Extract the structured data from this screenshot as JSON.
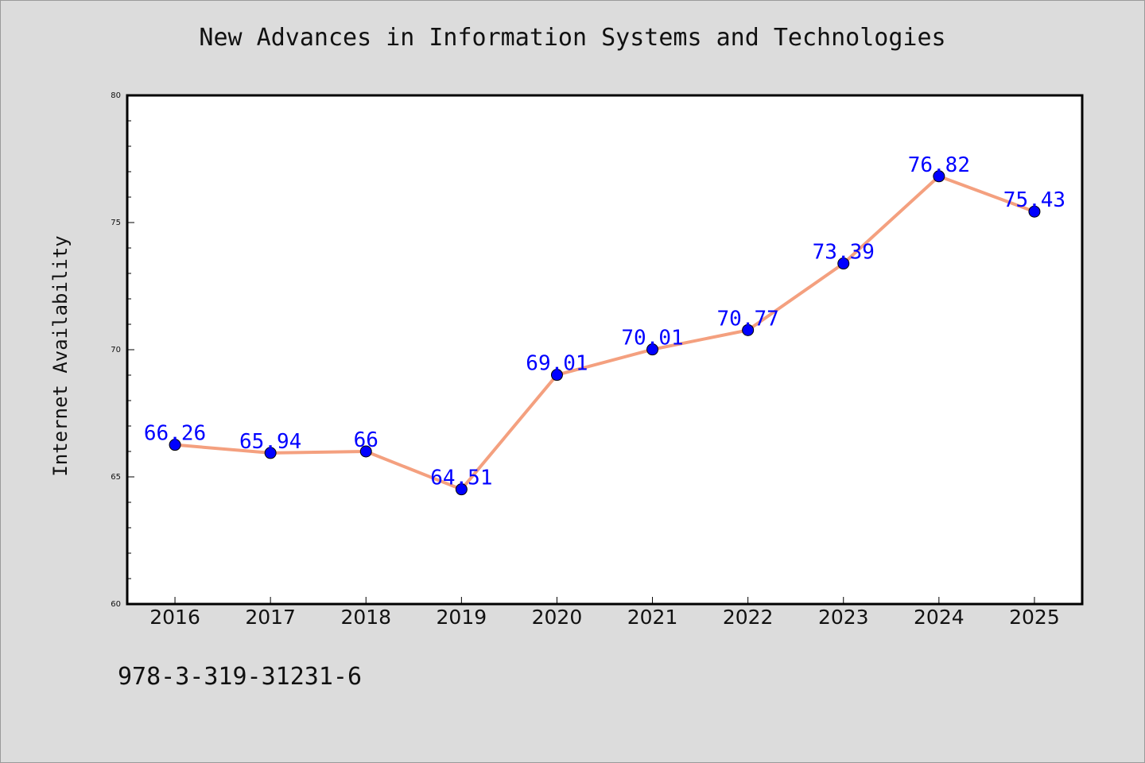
{
  "title": "New Advances in Information Systems and Technologies",
  "isbn": "978-3-319-31231-6",
  "chart_data": {
    "type": "line",
    "title": "New Advances in Information Systems and Technologies",
    "xlabel": "",
    "ylabel": "Internet Availability",
    "categories": [
      "2016",
      "2017",
      "2018",
      "2019",
      "2020",
      "2021",
      "2022",
      "2023",
      "2024",
      "2025"
    ],
    "series": [
      {
        "values": [
          66.26,
          65.94,
          66,
          64.51,
          69.01,
          70.01,
          70.77,
          73.39,
          76.82,
          75.43
        ],
        "data_labels": [
          "66.26",
          "65.94",
          "66",
          "64.51",
          "69.01",
          "70.01",
          "70.77",
          "73.39",
          "76.82",
          "75.43"
        ],
        "line_color": "#f4a07f",
        "marker_color": "#0000ff"
      }
    ],
    "ylim": [
      60,
      80
    ],
    "yticks": [
      60,
      65,
      70,
      75,
      80
    ],
    "ytick_labels": [
      "60",
      "65",
      "70",
      "75",
      "80"
    ],
    "grid": false,
    "legend": "none",
    "background_color": "#ffffff",
    "page_background": "#dcdcdc"
  }
}
